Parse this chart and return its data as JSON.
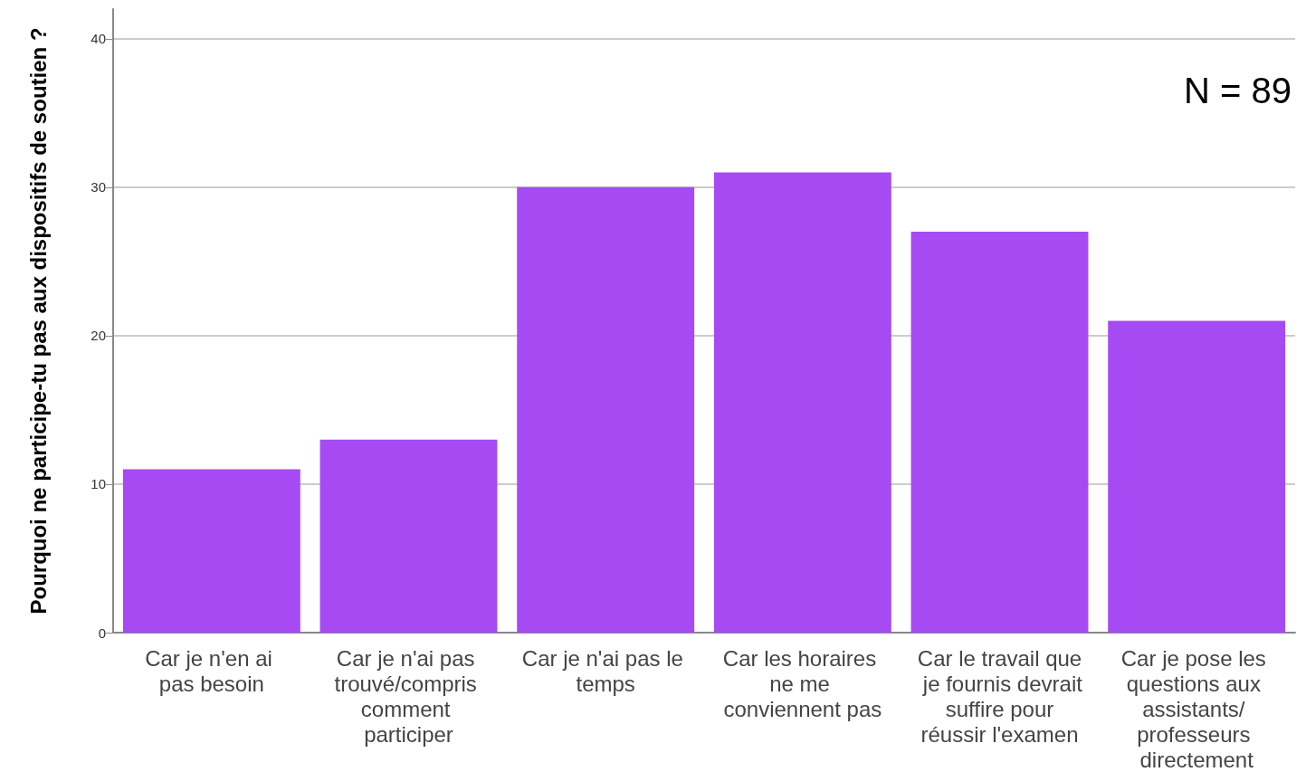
{
  "chart_data": {
    "type": "bar",
    "ylabel": "Pourquoi ne participe-tu pas aux dispositifs de soutien ?",
    "categories": [
      "Car je n'en ai pas besoin",
      "Car je n'ai pas trouvé/compris comment participer",
      "Car je n'ai pas le temps",
      "Car les horaires ne me conviennent pas",
      "Car le travail que je fournis devrait suffire pour réussir l'examen",
      "Car je pose les questions aux assistants/ professeurs directement"
    ],
    "values": [
      11,
      13,
      30,
      31,
      27,
      21
    ],
    "color": "#a64af4",
    "ylim": [
      0,
      42
    ],
    "yticks": [
      0,
      10,
      20,
      30,
      40
    ],
    "grid": "y",
    "annotations": [
      "N = 89"
    ]
  }
}
